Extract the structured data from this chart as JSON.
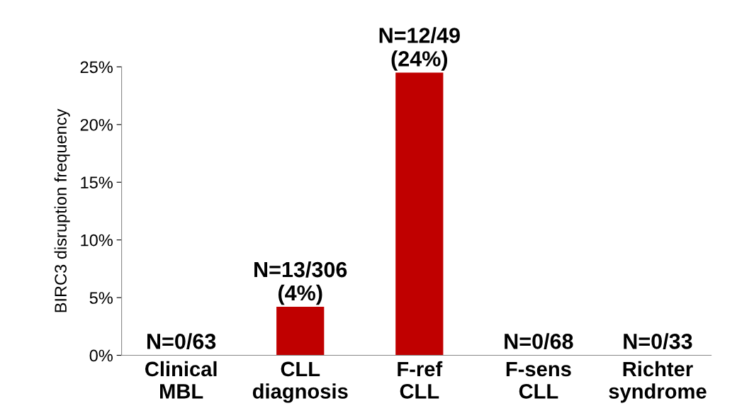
{
  "chart_data": {
    "type": "bar",
    "ylabel": "BIRC3 disruption frequency",
    "categories": [
      "Clinical\nMBL",
      "CLL\ndiagnosis",
      "F-ref\nCLL",
      "F-sens\nCLL",
      "Richter\nsyndrome"
    ],
    "values": [
      0,
      4.2,
      24.5,
      0,
      0
    ],
    "value_labels": [
      "N=0/63",
      "N=13/306\n(4%)",
      "N=12/49\n(24%)",
      "N=0/68",
      "N=0/33"
    ],
    "color": "#c00000",
    "ylim": [
      0,
      25
    ],
    "yticks": [
      {
        "value": 0,
        "label": "0%"
      },
      {
        "value": 5,
        "label": "5%"
      },
      {
        "value": 10,
        "label": "10%"
      },
      {
        "value": 15,
        "label": "15%"
      },
      {
        "value": 20,
        "label": "20%"
      },
      {
        "value": 25,
        "label": "25%"
      }
    ],
    "grid": false
  }
}
